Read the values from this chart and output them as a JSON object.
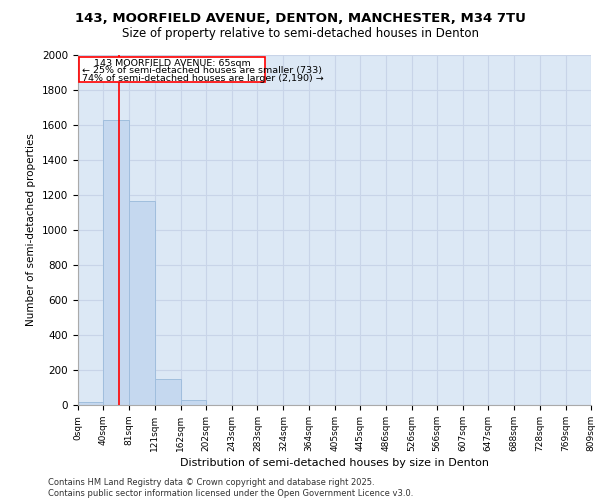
{
  "title_line1": "143, MOORFIELD AVENUE, DENTON, MANCHESTER, M34 7TU",
  "title_line2": "Size of property relative to semi-detached houses in Denton",
  "xlabel": "Distribution of semi-detached houses by size in Denton",
  "ylabel": "Number of semi-detached properties",
  "bin_labels": [
    "0sqm",
    "40sqm",
    "81sqm",
    "121sqm",
    "162sqm",
    "202sqm",
    "243sqm",
    "283sqm",
    "324sqm",
    "364sqm",
    "405sqm",
    "445sqm",
    "486sqm",
    "526sqm",
    "566sqm",
    "607sqm",
    "647sqm",
    "688sqm",
    "728sqm",
    "769sqm",
    "809sqm"
  ],
  "bar_heights": [
    20,
    1630,
    1165,
    150,
    30,
    0,
    0,
    0,
    0,
    0,
    0,
    0,
    0,
    0,
    0,
    0,
    0,
    0,
    0,
    0
  ],
  "bar_color": "#c5d8ef",
  "bar_edge_color": "#a0bedd",
  "annotation_text_line1": "143 MOORFIELD AVENUE: 65sqm",
  "annotation_text_line2": "← 25% of semi-detached houses are smaller (733)",
  "annotation_text_line3": "74% of semi-detached houses are larger (2,190) →",
  "redline_x": 65,
  "ylim": [
    0,
    2000
  ],
  "yticks": [
    0,
    200,
    400,
    600,
    800,
    1000,
    1200,
    1400,
    1600,
    1800,
    2000
  ],
  "grid_color": "#c8d4e8",
  "background_color": "#dce8f5",
  "footer_line1": "Contains HM Land Registry data © Crown copyright and database right 2025.",
  "footer_line2": "Contains public sector information licensed under the Open Government Licence v3.0.",
  "bin_edges": [
    0,
    40,
    81,
    121,
    162,
    202,
    243,
    283,
    324,
    364,
    405,
    445,
    486,
    526,
    566,
    607,
    647,
    688,
    728,
    769,
    809
  ]
}
